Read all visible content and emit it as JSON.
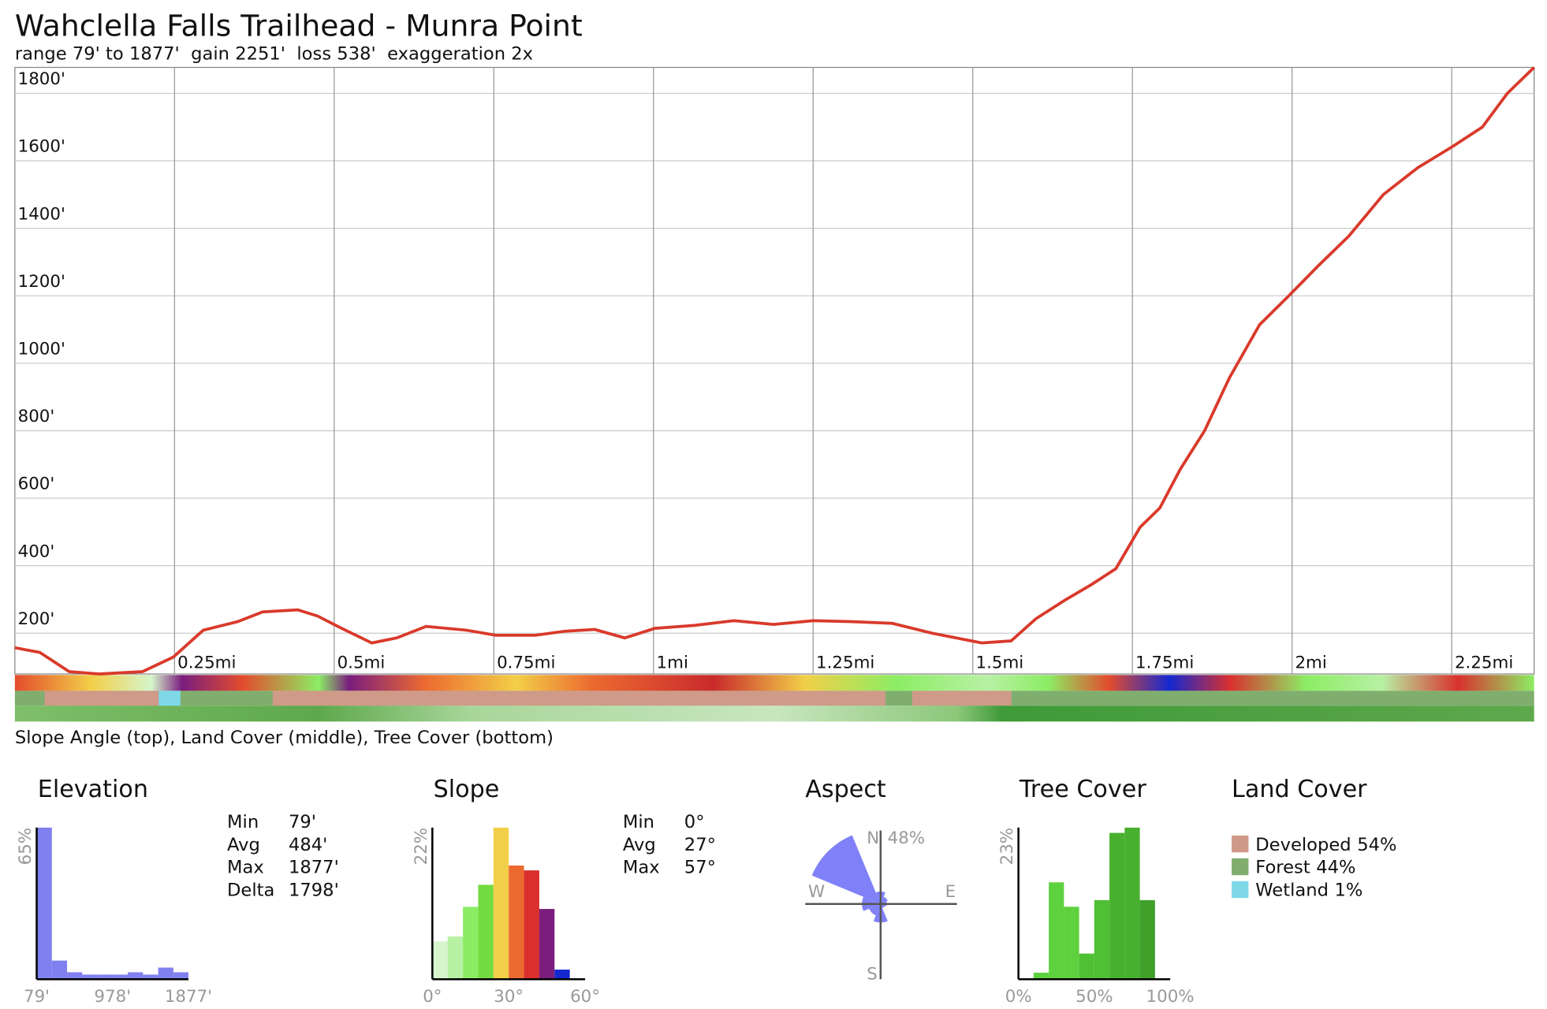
{
  "chart_data": [
    {
      "type": "line",
      "title": "Wahclella Falls Trailhead - Munra Point",
      "subtitle": "range 79' to 1877'  gain 2251'  loss 538'  exaggeration 2x",
      "caption": "Slope Angle (top), Land Cover (middle), Tree Cover (bottom)",
      "color": "#d93a2b",
      "grid": true,
      "xlim": [
        0,
        2.379
      ],
      "ylim": [
        79,
        1877
      ],
      "xticks": [
        {
          "value": 0.25,
          "label": "0.25mi"
        },
        {
          "value": 0.5,
          "label": "0.5mi"
        },
        {
          "value": 0.75,
          "label": "0.75mi"
        },
        {
          "value": 1,
          "label": "1mi"
        },
        {
          "value": 1.25,
          "label": "1.25mi"
        },
        {
          "value": 1.5,
          "label": "1.5mi"
        },
        {
          "value": 1.75,
          "label": "1.75mi"
        },
        {
          "value": 2,
          "label": "2mi"
        },
        {
          "value": 2.25,
          "label": "2.25mi"
        }
      ],
      "yticks": [
        {
          "value": 200,
          "label": "200'"
        },
        {
          "value": 400,
          "label": "400'"
        },
        {
          "value": 600,
          "label": "600'"
        },
        {
          "value": 800,
          "label": "800'"
        },
        {
          "value": 1000,
          "label": "1000'"
        },
        {
          "value": 1200,
          "label": "1200'"
        },
        {
          "value": 1400,
          "label": "1400'"
        },
        {
          "value": 1600,
          "label": "1600'"
        },
        {
          "value": 1800,
          "label": "1800'"
        }
      ],
      "x": [
        0,
        0.039,
        0.085,
        0.132,
        0.2,
        0.248,
        0.295,
        0.349,
        0.388,
        0.443,
        0.474,
        0.512,
        0.559,
        0.598,
        0.644,
        0.707,
        0.753,
        0.815,
        0.862,
        0.908,
        0.955,
        1.002,
        1.064,
        1.126,
        1.188,
        1.25,
        1.312,
        1.374,
        1.436,
        1.514,
        1.56,
        1.599,
        1.646,
        1.685,
        1.724,
        1.762,
        1.793,
        1.825,
        1.863,
        1.902,
        1.949,
        1.995,
        2.042,
        2.089,
        2.143,
        2.197,
        2.252,
        2.298,
        2.337,
        2.379
      ],
      "values": [
        157,
        143,
        86,
        79,
        86,
        129,
        209,
        234,
        263,
        269,
        251,
        214,
        171,
        186,
        220,
        209,
        194,
        194,
        206,
        211,
        186,
        214,
        223,
        237,
        226,
        237,
        234,
        229,
        200,
        171,
        177,
        243,
        300,
        343,
        391,
        514,
        571,
        686,
        800,
        957,
        1114,
        1200,
        1291,
        1377,
        1500,
        1580,
        1643,
        1700,
        1800,
        1877
      ]
    },
    {
      "type": "histogram",
      "title": "Elevation",
      "color": "#8080f0",
      "bins": [
        79,
        259,
        439,
        619,
        799,
        979,
        1159,
        1339,
        1519,
        1699,
        1877
      ],
      "values": [
        65,
        8,
        3,
        2,
        2,
        2,
        3,
        2,
        5,
        3
      ],
      "xlim": [
        79,
        1877
      ],
      "ylim": [
        0,
        65
      ],
      "xticks": [
        {
          "value": 79,
          "label": "79'"
        },
        {
          "value": 978,
          "label": "978'"
        },
        {
          "value": 1877,
          "label": "1877'"
        }
      ],
      "yticks": [
        {
          "value": 65,
          "label": "65%"
        }
      ],
      "stats": [
        [
          "Min",
          "79'"
        ],
        [
          "Avg",
          "484'"
        ],
        [
          "Max",
          "1877'"
        ],
        [
          "Delta",
          "1798'"
        ]
      ]
    },
    {
      "type": "histogram",
      "title": "Slope",
      "colors": [
        "#d6f5cc",
        "#b8f0a4",
        "#8ced64",
        "#72dc40",
        "#f2cf48",
        "#ec6a30",
        "#d9302e",
        "#7a1d7e",
        "#1428d0",
        "#000000"
      ],
      "bins": [
        0,
        6,
        12,
        18,
        24,
        30,
        36,
        42,
        48,
        54,
        60
      ],
      "values": [
        5.5,
        6.2,
        10.5,
        13.7,
        22,
        16.5,
        15.8,
        10.2,
        1.4,
        0
      ],
      "xlim": [
        0,
        60
      ],
      "ylim": [
        0,
        22
      ],
      "xticks": [
        {
          "value": 0,
          "label": "0°"
        },
        {
          "value": 30,
          "label": "30°"
        },
        {
          "value": 60,
          "label": "60°"
        }
      ],
      "yticks": [
        {
          "value": 22,
          "label": "22%"
        }
      ],
      "stats": [
        [
          "Min",
          "0°"
        ],
        [
          "Avg",
          "27°"
        ],
        [
          "Max",
          "57°"
        ]
      ]
    },
    {
      "type": "rose",
      "title": "Aspect",
      "color": "#8080f8",
      "directions": [
        "N",
        "NE",
        "E",
        "SE",
        "S",
        "SW",
        "W",
        "NW"
      ],
      "values": [
        8,
        5,
        4,
        3,
        12,
        8,
        12,
        48
      ],
      "rlim": [
        0,
        48
      ],
      "rlabel": {
        "value": 48,
        "label": "48%"
      },
      "compass": [
        "N",
        "E",
        "S",
        "W"
      ]
    },
    {
      "type": "histogram",
      "title": "Tree Cover",
      "colors": [
        "#5ed13e",
        "#5ed13e",
        "#5ed13e",
        "#5ed13e",
        "#4fbf33",
        "#4fbf33",
        "#47b02e",
        "#47b02e",
        "#3fa02a",
        "#3fa02a"
      ],
      "bins": [
        0,
        10,
        20,
        30,
        40,
        50,
        60,
        70,
        80,
        90,
        100
      ],
      "values": [
        0,
        1,
        14.7,
        11,
        3.9,
        12,
        22.2,
        23,
        12,
        0
      ],
      "xlim": [
        0,
        100
      ],
      "ylim": [
        0,
        23
      ],
      "xticks": [
        {
          "value": 0,
          "label": "0%"
        },
        {
          "value": 50,
          "label": "50%"
        },
        {
          "value": 100,
          "label": "100%"
        }
      ],
      "yticks": [
        {
          "value": 23,
          "label": "23%"
        }
      ]
    },
    {
      "type": "legend",
      "title": "Land Cover",
      "names": [
        "Developed",
        "Forest",
        "Wetland"
      ],
      "values": [
        54,
        44,
        1
      ],
      "value_labels": [
        "54%",
        "44%",
        "1%"
      ],
      "colors": [
        "#cf9a88",
        "#7fae6e",
        "#7fd8e8"
      ]
    }
  ]
}
